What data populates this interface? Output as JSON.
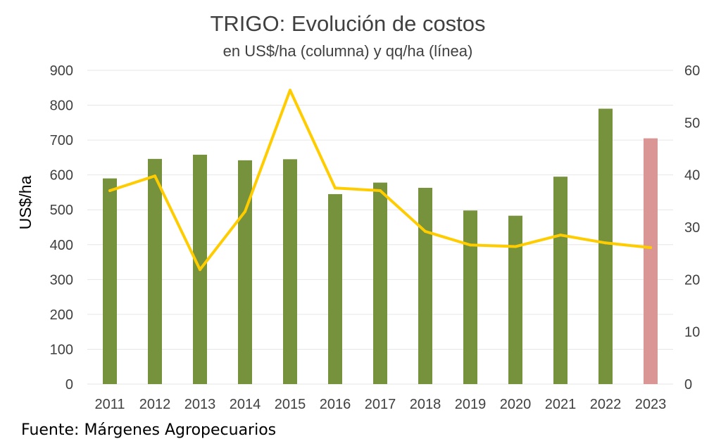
{
  "chart_data": {
    "type": "bar",
    "title": "TRIGO: Evolución de costos",
    "subtitle": "en US$/ha (columna) y qq/ha (línea)",
    "ylabel": "US$/ha",
    "source": "Fuente: Márgenes Agropecuarios",
    "categories": [
      "2011",
      "2012",
      "2013",
      "2014",
      "2015",
      "2016",
      "2017",
      "2018",
      "2019",
      "2020",
      "2021",
      "2022",
      "2023"
    ],
    "series": [
      {
        "kind": "bar",
        "axis": "left",
        "values": [
          590,
          646,
          658,
          642,
          645,
          545,
          578,
          563,
          498,
          483,
          595,
          790,
          705
        ],
        "colors": [
          "#76923c",
          "#76923c",
          "#76923c",
          "#76923c",
          "#76923c",
          "#76923c",
          "#76923c",
          "#76923c",
          "#76923c",
          "#76923c",
          "#76923c",
          "#76923c",
          "#d99694"
        ]
      },
      {
        "kind": "line",
        "axis": "right",
        "color": "#ffcc00",
        "values": [
          37.0,
          39.8,
          21.9,
          33.0,
          56.2,
          37.5,
          37.0,
          29.2,
          26.6,
          26.3,
          28.5,
          27.0,
          26.1
        ]
      }
    ],
    "ylim": [
      0,
      900
    ],
    "yticks": [
      "0",
      "100",
      "200",
      "300",
      "400",
      "500",
      "600",
      "700",
      "800",
      "900"
    ],
    "y2lim": [
      0,
      60
    ],
    "y2ticks": [
      "0",
      "10",
      "20",
      "30",
      "40",
      "50",
      "60"
    ],
    "grid": true,
    "legend": "none"
  }
}
